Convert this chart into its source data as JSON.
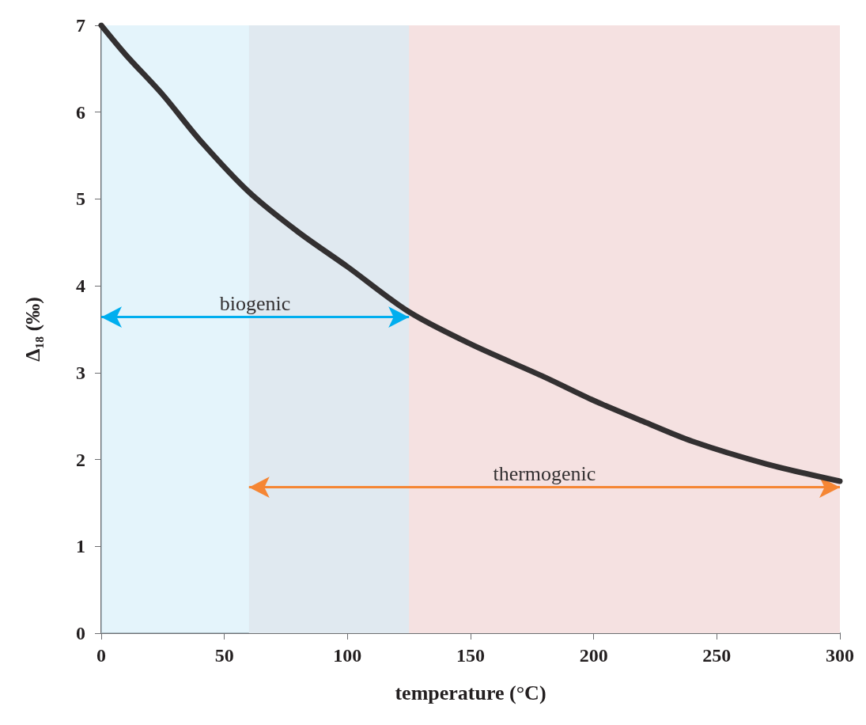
{
  "chart_data": {
    "type": "line",
    "xlabel": "temperature (°C)",
    "ylabel": "Δ₁₈ (‰)",
    "x": [
      0,
      10,
      25,
      40,
      60,
      80,
      100,
      125,
      150,
      180,
      200,
      220,
      240,
      270,
      300
    ],
    "series": [
      {
        "color": "#333031",
        "values": [
          7.0,
          6.66,
          6.2,
          5.68,
          5.08,
          4.62,
          4.22,
          3.7,
          3.33,
          2.95,
          2.68,
          2.44,
          2.21,
          1.95,
          1.75
        ]
      }
    ],
    "xlim": [
      0,
      300
    ],
    "xticks": [
      0,
      50,
      100,
      150,
      200,
      250,
      300
    ],
    "ylim": [
      0,
      7
    ],
    "yticks": [
      0,
      1,
      2,
      3,
      4,
      5,
      6,
      7
    ],
    "grid": false,
    "marker": "none",
    "line_style": "solid",
    "bands": [
      {
        "axis": "x",
        "from": 0,
        "to": 125,
        "color": "#d3edf9",
        "label": "biogenic"
      },
      {
        "axis": "x",
        "from": 60,
        "to": 300,
        "color": "#f5e1e1",
        "label": "thermogenic"
      }
    ]
  }
}
